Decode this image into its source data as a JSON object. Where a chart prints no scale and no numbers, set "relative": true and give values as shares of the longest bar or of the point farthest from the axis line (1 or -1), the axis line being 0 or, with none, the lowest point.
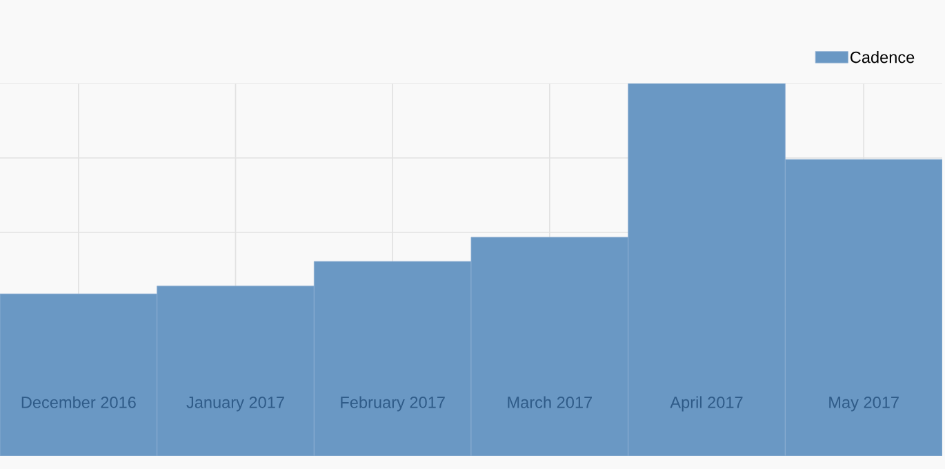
{
  "chart_data": {
    "type": "bar",
    "relative": true,
    "categories": [
      "December 2016",
      "January 2017",
      "February 2017",
      "March 2017",
      "April 2017",
      "May 2017"
    ],
    "series": [
      {
        "name": "Cadence",
        "color": "#6a98c4",
        "values": [
          0.435,
          0.456,
          0.522,
          0.587,
          1,
          0.796
        ]
      }
    ],
    "grid": true,
    "legend": "top right"
  }
}
